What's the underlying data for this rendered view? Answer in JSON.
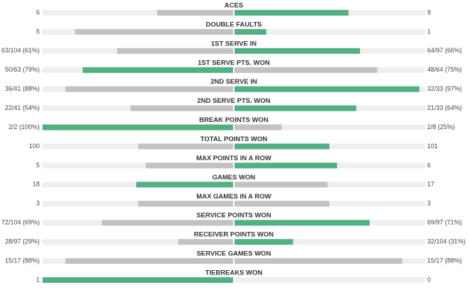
{
  "stats": {
    "max": 100,
    "rows": [
      {
        "label": "ACES",
        "left": "6",
        "right": "9",
        "values": [
          40,
          60
        ],
        "highlight": "right"
      },
      {
        "label": "DOUBLE FAULTS",
        "left": "5",
        "right": "1",
        "values": [
          83,
          17
        ],
        "highlight": "right"
      },
      {
        "label": "1ST SERVE IN",
        "left": "63/104 (61%)",
        "right": "64/97 (66%)",
        "values": [
          61,
          66
        ],
        "highlight": "right"
      },
      {
        "label": "1ST SERVE PTS. WON",
        "left": "50/63 (79%)",
        "right": "48/64 (75%)",
        "values": [
          79,
          75
        ],
        "highlight": "left"
      },
      {
        "label": "2ND SERVE IN",
        "left": "36/41 (88%)",
        "right": "32/33 (97%)",
        "values": [
          88,
          97
        ],
        "highlight": "right"
      },
      {
        "label": "2ND SERVE PTS. WON",
        "left": "22/41 (54%)",
        "right": "21/33 (64%)",
        "values": [
          54,
          64
        ],
        "highlight": "right"
      },
      {
        "label": "BREAK POINTS WON",
        "left": "2/2 (100%)",
        "right": "2/8 (25%)",
        "values": [
          100,
          25
        ],
        "highlight": "left"
      },
      {
        "label": "TOTAL POINTS WON",
        "left": "100",
        "right": "101",
        "values": [
          50,
          50
        ],
        "highlight": "right"
      },
      {
        "label": "MAX POINTS IN A ROW",
        "left": "5",
        "right": "6",
        "values": [
          46,
          54
        ],
        "highlight": "right"
      },
      {
        "label": "GAMES WON",
        "left": "18",
        "right": "17",
        "values": [
          51,
          49
        ],
        "highlight": "left"
      },
      {
        "label": "MAX GAMES IN A ROW",
        "left": "3",
        "right": "3",
        "values": [
          50,
          50
        ],
        "highlight": null
      },
      {
        "label": "SERVICE POINTS WON",
        "left": "72/104 (69%)",
        "right": "69/97 (71%)",
        "values": [
          69,
          71
        ],
        "highlight": "right"
      },
      {
        "label": "RECEIVER POINTS WON",
        "left": "28/97 (29%)",
        "right": "32/104 (31%)",
        "values": [
          29,
          31
        ],
        "highlight": "right"
      },
      {
        "label": "SERVICE GAMES WON",
        "left": "15/17 (88%)",
        "right": "15/17 (88%)",
        "values": [
          88,
          88
        ],
        "highlight": null
      },
      {
        "label": "TIEBREAKS WON",
        "left": "1",
        "right": "0",
        "values": [
          100,
          0
        ],
        "highlight": "left"
      }
    ],
    "colors": {
      "win": "#52b083",
      "lose": "#c2c2c2",
      "track": "#efefef"
    }
  }
}
